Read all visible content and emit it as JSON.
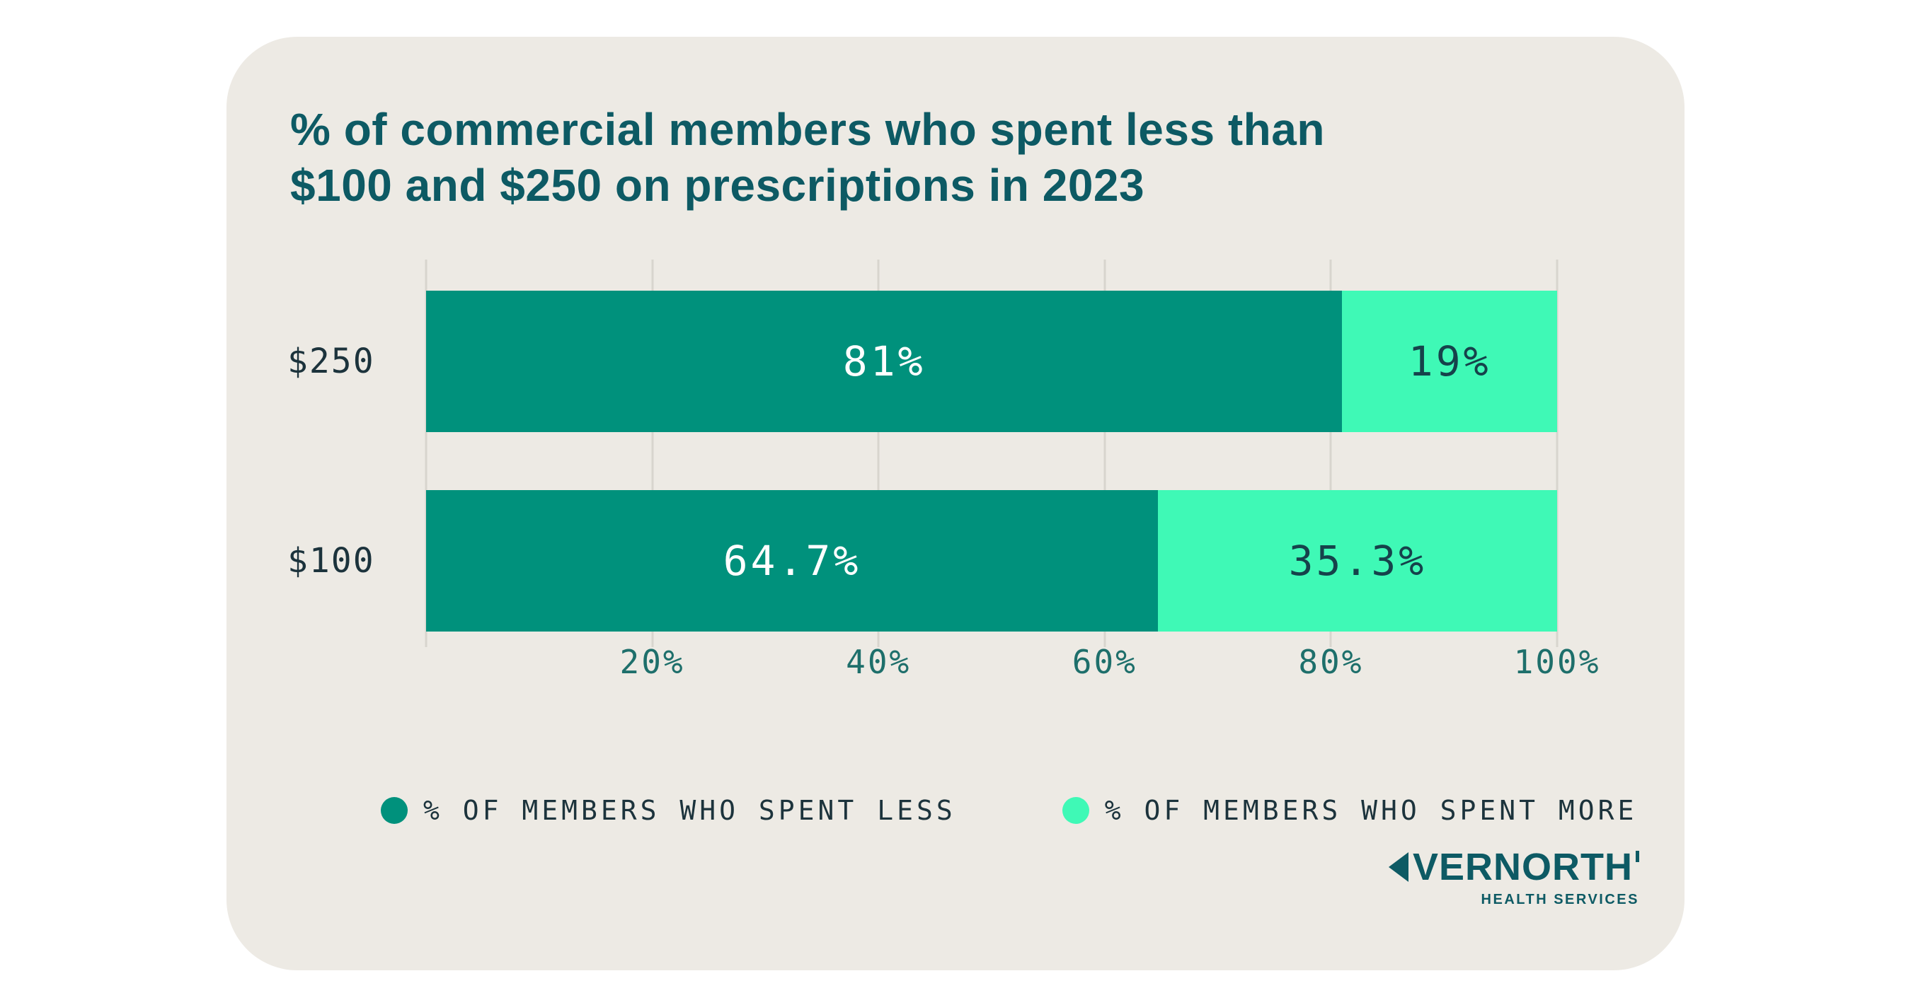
{
  "title": {
    "lines": [
      "% of commercial members who spent less than",
      "$100 and $250 on prescriptions in 2023"
    ],
    "color": "#0D5A64"
  },
  "chart_data": {
    "type": "bar",
    "subtype": "horizontal-stacked",
    "categories": [
      "$250",
      "$100"
    ],
    "series": [
      {
        "name": "% OF MEMBERS WHO SPENT LESS",
        "color": "#00917C",
        "label_color": "#FFFFFF",
        "values": [
          81,
          64.7
        ],
        "labels": [
          "81%",
          "64.7%"
        ]
      },
      {
        "name": "% OF MEMBERS WHO SPENT MORE",
        "color": "#3FF9B6",
        "label_color": "#16424B",
        "values": [
          19,
          35.3
        ],
        "labels": [
          "19%",
          "35.3%"
        ]
      }
    ],
    "x_range": [
      0,
      100
    ],
    "grid": true,
    "grid_positions": [
      0,
      20,
      40,
      60,
      80,
      100
    ],
    "x_ticks": [
      {
        "label": "20%",
        "pos": 20
      },
      {
        "label": "40%",
        "pos": 40
      },
      {
        "label": "60%",
        "pos": 60
      },
      {
        "label": "80%",
        "pos": 80
      },
      {
        "label": "100%",
        "pos": 100
      }
    ],
    "legend_position": "bottom"
  },
  "legend": {
    "items": [
      {
        "label": "% OF MEMBERS WHO SPENT LESS",
        "color": "#00917C"
      },
      {
        "label": "% OF MEMBERS WHO SPENT MORE",
        "color": "#3FF9B6"
      }
    ]
  },
  "logo": {
    "brand": "EVERNORTH",
    "brand_rest": "VERNORTH",
    "subtitle": "HEALTH SERVICES",
    "color": "#0D5A64"
  },
  "colors": {
    "page_background": "#FFFFFF",
    "card_background": "#EDEAE4",
    "gridline": "#D8D5CE",
    "axis_text": "#1E6F6B",
    "label_text": "#1C333C"
  }
}
